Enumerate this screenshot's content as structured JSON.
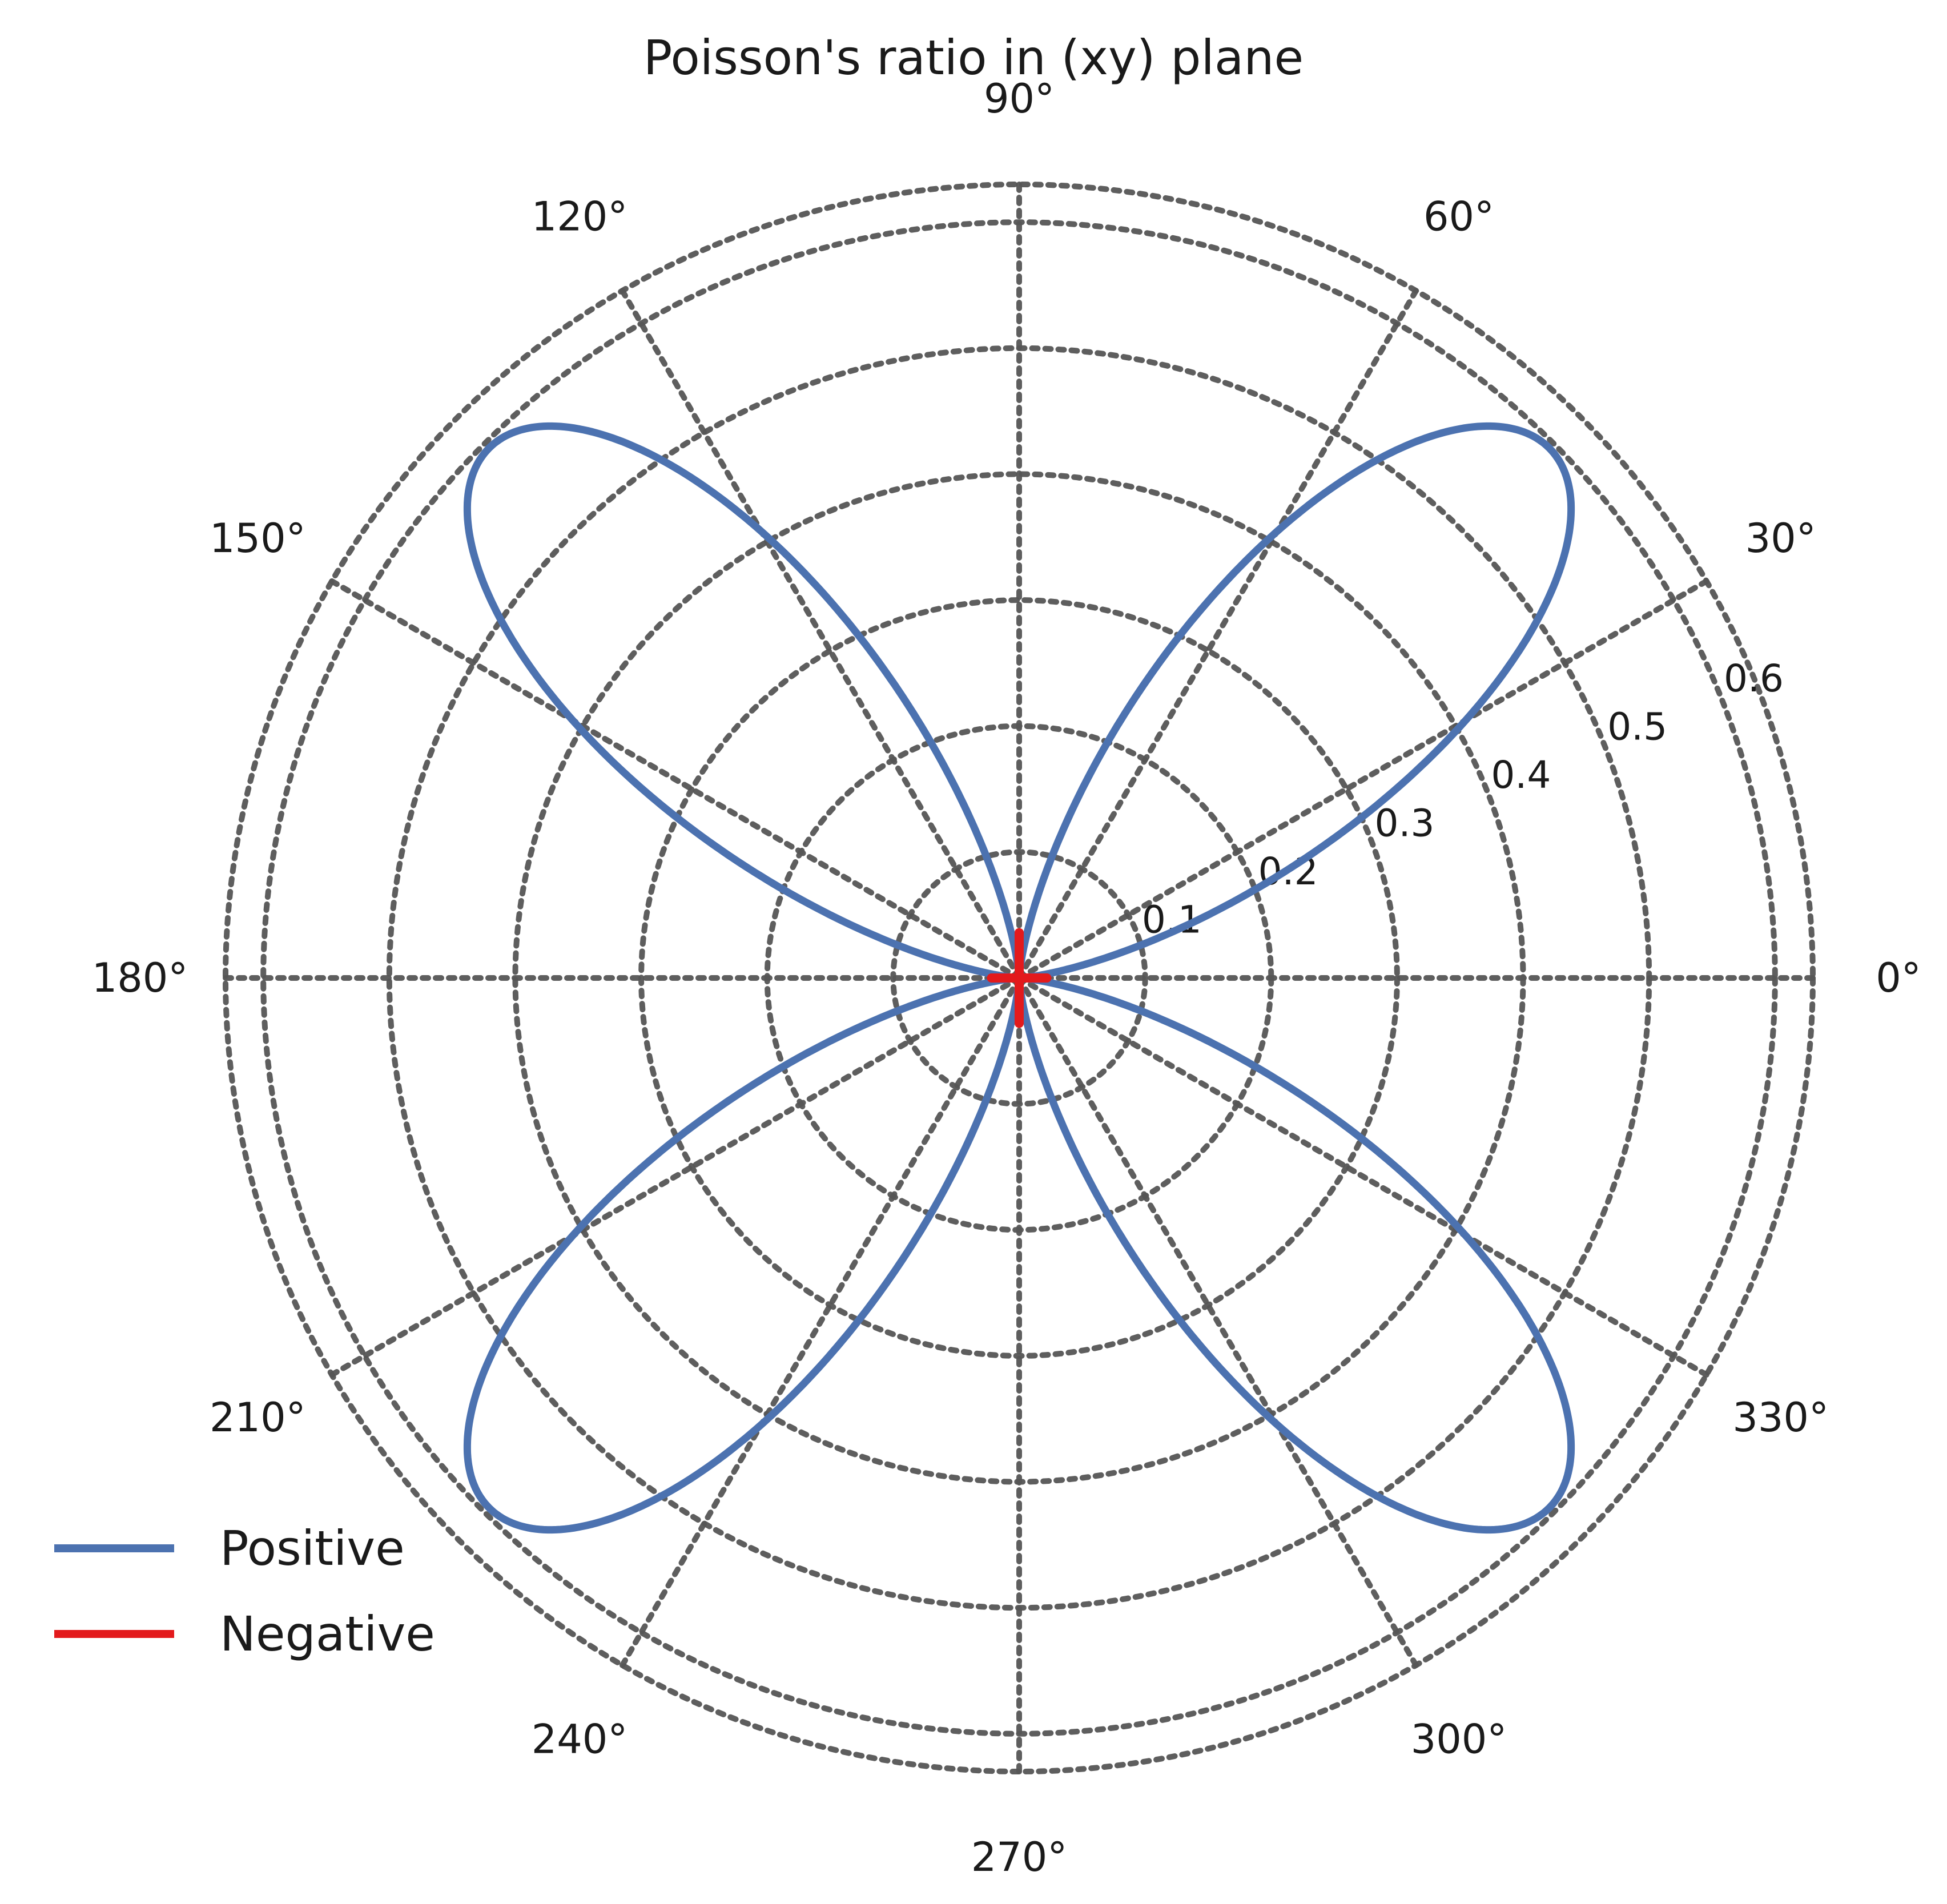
{
  "chart_data": {
    "type": "polar-line",
    "title": "Poisson's ratio in (xy) plane",
    "angle_unit": "deg",
    "theta_ticks": [
      0,
      30,
      60,
      90,
      120,
      150,
      180,
      210,
      240,
      270,
      300,
      330
    ],
    "theta_tick_labels": [
      "0°",
      "30°",
      "60°",
      "90°",
      "120°",
      "150°",
      "180°",
      "210°",
      "240°",
      "270°",
      "300°",
      "330°"
    ],
    "r_ticks": [
      0.1,
      0.2,
      0.3,
      0.4,
      0.5,
      0.6
    ],
    "r_tick_labels": [
      "0.1",
      "0.2",
      "0.3",
      "0.4",
      "0.5",
      "0.6"
    ],
    "rlim": [
      0,
      0.63
    ],
    "grid": true,
    "grid_style": "dotted",
    "legend_position": "lower-left",
    "series": [
      {
        "name": "Positive",
        "color": "#4c72b0",
        "model": "r = peak * |sin(2*theta)|^2.6",
        "peak": 0.595,
        "theta_deg": [
          0,
          15,
          30,
          45,
          60,
          75,
          90,
          105,
          120,
          135,
          150,
          165,
          180,
          195,
          210,
          225,
          240,
          255,
          270,
          285,
          300,
          315,
          330,
          345
        ],
        "r": [
          0,
          0.098,
          0.409,
          0.595,
          0.409,
          0.098,
          0,
          0.098,
          0.409,
          0.595,
          0.409,
          0.098,
          0,
          0.098,
          0.409,
          0.595,
          0.409,
          0.098,
          0,
          0.098,
          0.409,
          0.595,
          0.409,
          0.098
        ]
      },
      {
        "name": "Negative",
        "color": "#e31a1c",
        "theta_deg": [
          0,
          90,
          180,
          270
        ],
        "r": [
          0.022,
          0.036,
          0.022,
          0.036
        ]
      }
    ]
  }
}
